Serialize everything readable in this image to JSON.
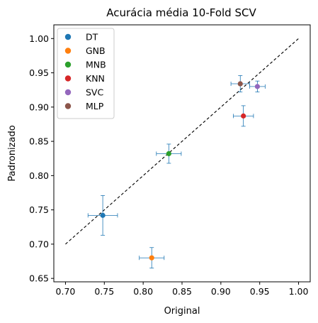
{
  "chart_data": {
    "type": "scatter",
    "title": "Acurácia média 10-Fold SCV",
    "xlabel": "Original",
    "ylabel": "Padronizado",
    "xlim": [
      0.685,
      1.015
    ],
    "ylim": [
      0.645,
      1.02
    ],
    "xticks": [
      0.7,
      0.75,
      0.8,
      0.85,
      0.9,
      0.95,
      1.0
    ],
    "yticks": [
      0.65,
      0.7,
      0.75,
      0.8,
      0.85,
      0.9,
      0.95,
      1.0
    ],
    "xtick_labels": [
      "0.70",
      "0.75",
      "0.80",
      "0.85",
      "0.90",
      "0.95",
      "1.00"
    ],
    "ytick_labels": [
      "0.65",
      "0.70",
      "0.75",
      "0.80",
      "0.85",
      "0.90",
      "0.95",
      "1.00"
    ],
    "grid": false,
    "legend_position": "top-left",
    "reference_line": {
      "x": [
        0.7,
        1.0
      ],
      "y": [
        0.7,
        1.0
      ],
      "style": "dashed",
      "color": "#000000"
    },
    "errorbar_color": "#1f77b4",
    "series": [
      {
        "name": "DT",
        "color": "#1f77b4",
        "x": 0.748,
        "y": 0.742,
        "xerr": 0.019,
        "yerr": 0.029
      },
      {
        "name": "GNB",
        "color": "#ff7f0e",
        "x": 0.811,
        "y": 0.68,
        "xerr": 0.016,
        "yerr": 0.015
      },
      {
        "name": "MNB",
        "color": "#2ca02c",
        "x": 0.833,
        "y": 0.832,
        "xerr": 0.016,
        "yerr": 0.014
      },
      {
        "name": "KNN",
        "color": "#d62728",
        "x": 0.929,
        "y": 0.887,
        "xerr": 0.013,
        "yerr": 0.015
      },
      {
        "name": "SVC",
        "color": "#9467bd",
        "x": 0.947,
        "y": 0.93,
        "xerr": 0.01,
        "yerr": 0.008
      },
      {
        "name": "MLP",
        "color": "#8c564b",
        "x": 0.925,
        "y": 0.934,
        "xerr": 0.012,
        "yerr": 0.012
      }
    ]
  }
}
